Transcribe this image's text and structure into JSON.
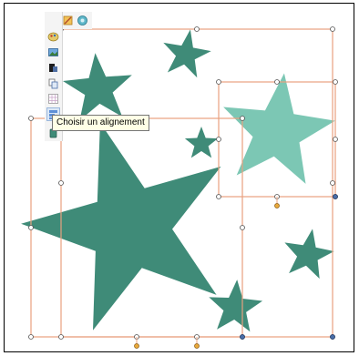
{
  "tooltip": {
    "text": "Choisir un alignement"
  },
  "toolbar": {
    "top_tools": [
      {
        "name": "lock-tool",
        "icon": "lock-icon"
      },
      {
        "name": "transform-tool",
        "icon": "transform-icon"
      },
      {
        "name": "ungroup-tool",
        "icon": "ungroup-icon"
      }
    ],
    "side_tools": [
      {
        "name": "color-tool",
        "icon": "paint-palette-icon"
      },
      {
        "name": "image-tool",
        "icon": "picture-icon"
      },
      {
        "name": "layer-order-tool",
        "icon": "layers-icon"
      },
      {
        "name": "duplicate-tool",
        "icon": "copy-icon"
      },
      {
        "name": "grid-tool",
        "icon": "grid-icon"
      },
      {
        "name": "align-tool",
        "icon": "align-icon",
        "active": true
      },
      {
        "name": "misc-tool",
        "icon": "shape-icon"
      }
    ]
  },
  "colors": {
    "star_dark": "#3f8b78",
    "star_light": "#7cc7b4",
    "selection": "#e8a07f",
    "handle_fill": "#ffffff",
    "handle_stroke": "#555555",
    "rotate_handle": "#e9a93a",
    "anchor_handle": "#4a6ea8"
  },
  "shapes": [
    {
      "name": "large-star",
      "color": "star_dark"
    },
    {
      "name": "star-top-left",
      "color": "star_dark"
    },
    {
      "name": "star-top-middle",
      "color": "star_dark"
    },
    {
      "name": "star-small-center",
      "color": "star_dark"
    },
    {
      "name": "star-selected-light",
      "color": "star_light"
    },
    {
      "name": "star-right",
      "color": "star_dark"
    },
    {
      "name": "star-bottom",
      "color": "star_dark"
    }
  ]
}
